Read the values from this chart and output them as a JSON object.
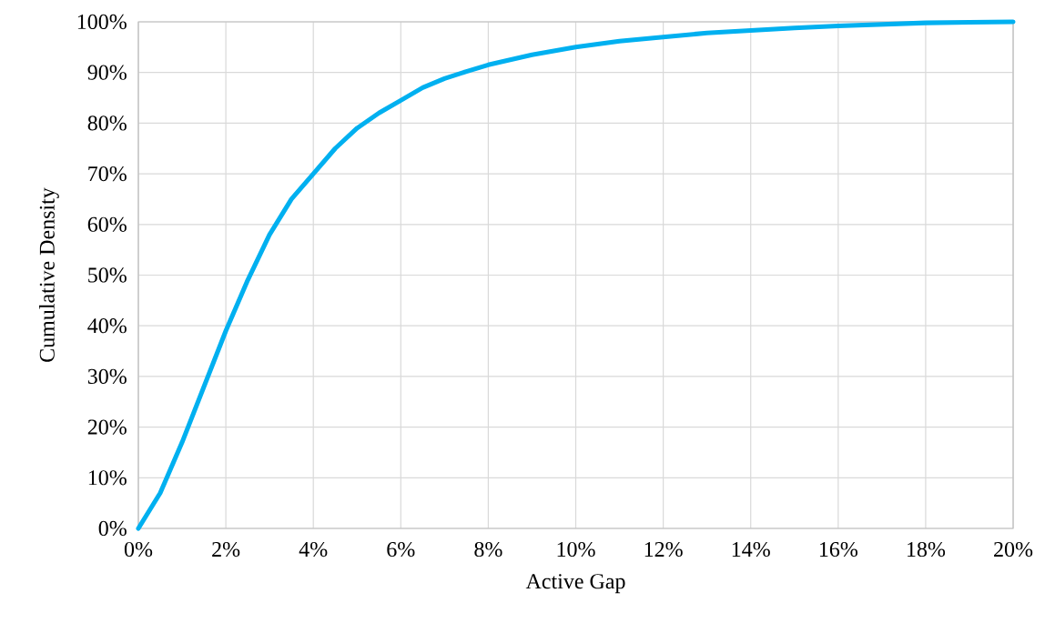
{
  "chart_data": {
    "type": "line",
    "xlabel": "Active Gap",
    "ylabel": "Cumulative Density",
    "x": [
      0,
      0.5,
      1,
      1.5,
      2,
      2.5,
      3,
      3.5,
      4,
      4.5,
      5,
      5.5,
      6,
      6.5,
      7,
      7.5,
      8,
      9,
      10,
      11,
      12,
      13,
      14,
      15,
      16,
      17,
      18,
      19,
      20
    ],
    "series": [
      {
        "color": "#00b0f0",
        "values": [
          0,
          7,
          17,
          28,
          39,
          49,
          58,
          65,
          70,
          75,
          79,
          82,
          84.5,
          87,
          88.8,
          90.2,
          91.5,
          93.5,
          95,
          96.2,
          97,
          97.8,
          98.3,
          98.8,
          99.2,
          99.5,
          99.8,
          99.9,
          100
        ]
      }
    ],
    "xlim": [
      0,
      20
    ],
    "ylim": [
      0,
      100
    ],
    "xticks": [
      {
        "value": 0,
        "label": "0%"
      },
      {
        "value": 2,
        "label": "2%"
      },
      {
        "value": 4,
        "label": "4%"
      },
      {
        "value": 6,
        "label": "6%"
      },
      {
        "value": 8,
        "label": "8%"
      },
      {
        "value": 10,
        "label": "10%"
      },
      {
        "value": 12,
        "label": "12%"
      },
      {
        "value": 14,
        "label": "14%"
      },
      {
        "value": 16,
        "label": "16%"
      },
      {
        "value": 18,
        "label": "18%"
      },
      {
        "value": 20,
        "label": "20%"
      }
    ],
    "yticks": [
      {
        "value": 0,
        "label": "0%"
      },
      {
        "value": 10,
        "label": "10%"
      },
      {
        "value": 20,
        "label": "20%"
      },
      {
        "value": 30,
        "label": "30%"
      },
      {
        "value": 40,
        "label": "40%"
      },
      {
        "value": 50,
        "label": "50%"
      },
      {
        "value": 60,
        "label": "60%"
      },
      {
        "value": 70,
        "label": "70%"
      },
      {
        "value": 80,
        "label": "80%"
      },
      {
        "value": 90,
        "label": "90%"
      },
      {
        "value": 100,
        "label": "100%"
      }
    ],
    "grid": true,
    "marker": "none",
    "line_style": "solid"
  }
}
